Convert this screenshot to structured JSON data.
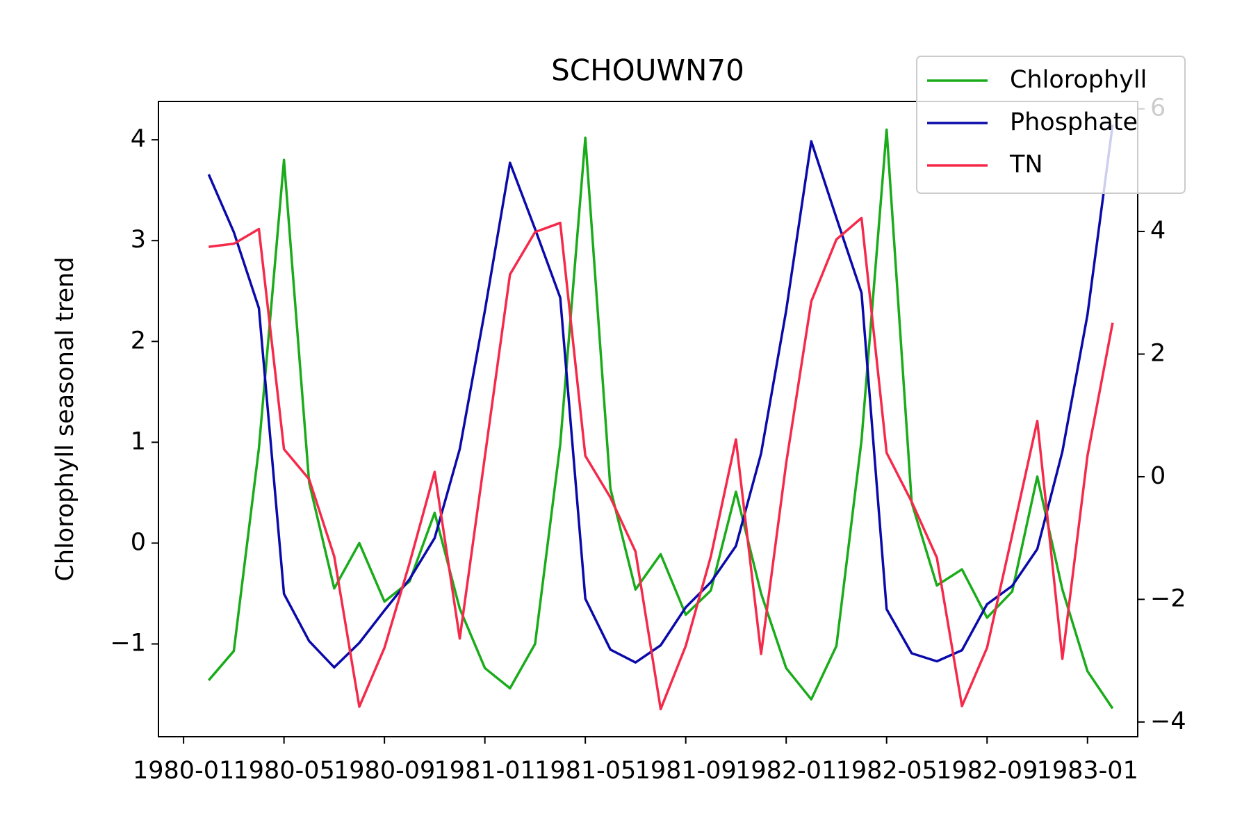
{
  "chart_data": {
    "type": "line",
    "title": "SCHOUWN70",
    "ylabel": "Chlorophyll seasonal trend",
    "x": [
      "1980-02",
      "1980-03",
      "1980-04",
      "1980-05",
      "1980-06",
      "1980-07",
      "1980-08",
      "1980-09",
      "1980-10",
      "1980-11",
      "1980-12",
      "1981-01",
      "1981-02",
      "1981-03",
      "1981-04",
      "1981-05",
      "1981-06",
      "1981-07",
      "1981-08",
      "1981-09",
      "1981-10",
      "1981-11",
      "1981-12",
      "1982-01",
      "1982-02",
      "1982-03",
      "1982-04",
      "1982-05",
      "1982-06",
      "1982-07",
      "1982-08",
      "1982-09",
      "1982-10",
      "1982-11",
      "1982-12",
      "1983-01",
      "1983-02"
    ],
    "series": [
      {
        "name": "Chlorophyll",
        "color": "#1aab1a",
        "values": [
          -1.36,
          -1.07,
          0.94,
          3.8,
          0.6,
          -0.45,
          0.0,
          -0.58,
          -0.38,
          0.3,
          -0.65,
          -1.24,
          -1.44,
          -1.0,
          0.98,
          4.02,
          0.54,
          -0.46,
          -0.11,
          -0.71,
          -0.47,
          0.51,
          -0.5,
          -1.24,
          -1.55,
          -1.02,
          1.02,
          4.1,
          0.4,
          -0.42,
          -0.26,
          -0.74,
          -0.48,
          0.66,
          -0.46,
          -1.27,
          -1.64
        ]
      },
      {
        "name": "Phosphate",
        "color": "#0a0aaa",
        "axis": "y2",
        "values": [
          4.93,
          3.99,
          2.75,
          -1.91,
          -2.68,
          -3.11,
          -2.71,
          -2.18,
          -1.67,
          -1.0,
          0.45,
          2.71,
          5.12,
          4.04,
          2.92,
          -1.99,
          -2.82,
          -3.03,
          -2.75,
          -2.13,
          -1.72,
          -1.13,
          0.38,
          2.71,
          5.47,
          4.22,
          3.0,
          -2.16,
          -2.88,
          -3.01,
          -2.83,
          -2.08,
          -1.78,
          -1.18,
          0.41,
          2.64,
          5.74
        ]
      },
      {
        "name": "TN",
        "color": "#f5294a",
        "axis": "y2",
        "values": [
          3.75,
          3.8,
          4.04,
          0.45,
          -0.04,
          -1.3,
          -3.75,
          -2.79,
          -1.41,
          0.08,
          -2.64,
          0.33,
          3.3,
          3.99,
          4.14,
          0.34,
          -0.34,
          -1.22,
          -3.79,
          -2.76,
          -1.3,
          0.61,
          -2.89,
          0.22,
          2.86,
          3.87,
          4.22,
          0.39,
          -0.41,
          -1.32,
          -3.74,
          -2.79,
          -0.95,
          0.91,
          -2.97,
          0.34,
          2.51
        ]
      }
    ],
    "xlim": [
      "1979-12",
      "1983-03"
    ],
    "xticks": [
      "1980-01",
      "1980-05",
      "1980-09",
      "1981-01",
      "1981-05",
      "1981-09",
      "1982-01",
      "1982-05",
      "1982-09",
      "1983-01"
    ],
    "ylim": [
      -1.92,
      4.38
    ],
    "yticks": [
      {
        "value": -1,
        "label": "−1"
      },
      0,
      1,
      2,
      3,
      4
    ],
    "y2lim": [
      -4.24,
      6.12
    ],
    "y2ticks": [
      {
        "value": -4,
        "label": "−4"
      },
      {
        "value": -2,
        "label": "−2"
      },
      0,
      2,
      4,
      6
    ],
    "legend": "upper right"
  }
}
